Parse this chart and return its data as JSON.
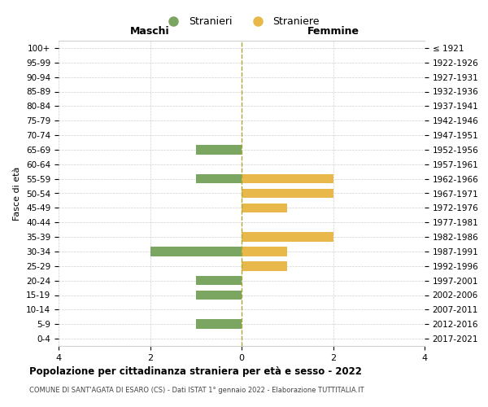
{
  "age_groups": [
    "100+",
    "95-99",
    "90-94",
    "85-89",
    "80-84",
    "75-79",
    "70-74",
    "65-69",
    "60-64",
    "55-59",
    "50-54",
    "45-49",
    "40-44",
    "35-39",
    "30-34",
    "25-29",
    "20-24",
    "15-19",
    "10-14",
    "5-9",
    "0-4"
  ],
  "birth_years": [
    "≤ 1921",
    "1922-1926",
    "1927-1931",
    "1932-1936",
    "1937-1941",
    "1942-1946",
    "1947-1951",
    "1952-1956",
    "1957-1961",
    "1962-1966",
    "1967-1971",
    "1972-1976",
    "1977-1981",
    "1982-1986",
    "1987-1991",
    "1992-1996",
    "1997-2001",
    "2002-2006",
    "2007-2011",
    "2012-2016",
    "2017-2021"
  ],
  "maschi": [
    0,
    0,
    0,
    0,
    0,
    0,
    0,
    1,
    0,
    1,
    0,
    0,
    0,
    0,
    2,
    0,
    1,
    1,
    0,
    1,
    0
  ],
  "femmine": [
    0,
    0,
    0,
    0,
    0,
    0,
    0,
    0,
    0,
    2,
    2,
    1,
    0,
    2,
    1,
    1,
    0,
    0,
    0,
    0,
    0
  ],
  "color_maschi": "#7aa661",
  "color_femmine": "#e8b84b",
  "title": "Popolazione per cittadinanza straniera per età e sesso - 2022",
  "subtitle": "COMUNE DI SANT'AGATA DI ESARO (CS) - Dati ISTAT 1° gennaio 2022 - Elaborazione TUTTITALIA.IT",
  "ylabel_left": "Fasce di età",
  "xlabel_maschi": "Maschi",
  "xlabel_femmine": "Femmine",
  "legend_stranieri": "Stranieri",
  "legend_straniere": "Straniere",
  "xlim": 4,
  "background_color": "#ffffff",
  "grid_color": "#d0d0d0"
}
